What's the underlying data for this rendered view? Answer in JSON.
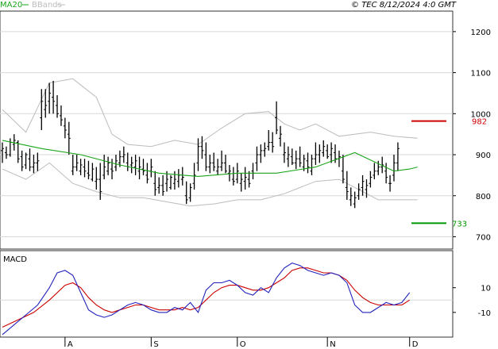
{
  "header": {
    "copyright": "© TEC 8/12/2024 4:0 GMT"
  },
  "legend": [
    {
      "label": "MA20",
      "color": "#1aa51a"
    },
    {
      "label": "BBands",
      "color": "#bcbcbc"
    }
  ],
  "price_axis": {
    "ticks": [
      700,
      800,
      900,
      1000,
      1100,
      1200
    ]
  },
  "macd_axis": {
    "ticks": [
      "10",
      "-10"
    ]
  },
  "x_axis": {
    "labels": [
      "A",
      "S",
      "O",
      "N",
      "D"
    ]
  },
  "levels": {
    "resistance": {
      "label": "982",
      "value": 982,
      "color": "#cc0000"
    },
    "support": {
      "label": "733",
      "value": 733,
      "color": "#009900"
    }
  },
  "macd_panel": {
    "title": "MACD"
  },
  "colors": {
    "ma": "#1aa51a",
    "bands": "#bcbcbc",
    "macd": "#2222bb",
    "signal": "#cc0000",
    "grid": "#d8d8d8",
    "bar": "#000000"
  },
  "chart_data": {
    "type": "ohlc",
    "price_ylim": [
      670,
      1250
    ],
    "macd_ylim": [
      -30,
      40
    ],
    "month_starts": {
      "A": 16,
      "S": 38,
      "O": 60,
      "N": 83,
      "D": 104
    },
    "bars": [
      [
        910,
        930,
        880,
        915
      ],
      [
        905,
        920,
        890,
        900
      ],
      [
        900,
        940,
        895,
        930
      ],
      [
        925,
        950,
        910,
        935
      ],
      [
        930,
        935,
        880,
        890
      ],
      [
        895,
        910,
        860,
        870
      ],
      [
        875,
        905,
        865,
        900
      ],
      [
        890,
        915,
        860,
        870
      ],
      [
        870,
        900,
        855,
        880
      ],
      [
        880,
        905,
        860,
        885
      ],
      [
        990,
        1060,
        960,
        1030
      ],
      [
        1010,
        1060,
        990,
        1020
      ],
      [
        1030,
        1075,
        1000,
        1050
      ],
      [
        1040,
        1080,
        1000,
        1030
      ],
      [
        1020,
        1045,
        990,
        1000
      ],
      [
        995,
        1020,
        970,
        985
      ],
      [
        970,
        990,
        940,
        960
      ],
      [
        950,
        980,
        900,
        940
      ],
      [
        860,
        900,
        850,
        870
      ],
      [
        870,
        900,
        860,
        880
      ],
      [
        860,
        890,
        850,
        875
      ],
      [
        870,
        890,
        845,
        860
      ],
      [
        855,
        885,
        840,
        850
      ],
      [
        840,
        880,
        835,
        865
      ],
      [
        835,
        870,
        815,
        840
      ],
      [
        840,
        880,
        790,
        810
      ],
      [
        850,
        900,
        840,
        870
      ],
      [
        860,
        895,
        850,
        880
      ],
      [
        865,
        890,
        840,
        860
      ],
      [
        870,
        900,
        860,
        885
      ],
      [
        880,
        910,
        870,
        895
      ],
      [
        895,
        920,
        880,
        900
      ],
      [
        880,
        905,
        860,
        870
      ],
      [
        875,
        895,
        855,
        880
      ],
      [
        870,
        900,
        850,
        885
      ],
      [
        860,
        895,
        840,
        870
      ],
      [
        865,
        890,
        850,
        860
      ],
      [
        850,
        880,
        830,
        840
      ],
      [
        860,
        890,
        845,
        870
      ],
      [
        830,
        860,
        800,
        815
      ],
      [
        820,
        845,
        805,
        825
      ],
      [
        825,
        850,
        800,
        810
      ],
      [
        830,
        860,
        810,
        840
      ],
      [
        820,
        850,
        815,
        845
      ],
      [
        830,
        860,
        815,
        840
      ],
      [
        835,
        865,
        820,
        850
      ],
      [
        840,
        870,
        825,
        845
      ],
      [
        800,
        835,
        780,
        790
      ],
      [
        795,
        830,
        785,
        820
      ],
      [
        830,
        880,
        815,
        850
      ],
      [
        880,
        940,
        860,
        920
      ],
      [
        920,
        945,
        890,
        910
      ],
      [
        900,
        930,
        860,
        870
      ],
      [
        870,
        900,
        855,
        880
      ],
      [
        880,
        905,
        860,
        870
      ],
      [
        860,
        890,
        850,
        870
      ],
      [
        870,
        910,
        860,
        880
      ],
      [
        880,
        900,
        855,
        860
      ],
      [
        855,
        875,
        835,
        860
      ],
      [
        840,
        870,
        825,
        835
      ],
      [
        840,
        880,
        830,
        860
      ],
      [
        830,
        855,
        810,
        840
      ],
      [
        835,
        870,
        815,
        845
      ],
      [
        840,
        860,
        820,
        830
      ],
      [
        860,
        880,
        840,
        855
      ],
      [
        880,
        920,
        860,
        900
      ],
      [
        900,
        925,
        880,
        910
      ],
      [
        910,
        930,
        895,
        915
      ],
      [
        920,
        960,
        910,
        930
      ],
      [
        930,
        955,
        905,
        920
      ],
      [
        990,
        1030,
        950,
        960
      ],
      [
        940,
        970,
        920,
        950
      ],
      [
        900,
        930,
        880,
        905
      ],
      [
        890,
        920,
        870,
        900
      ],
      [
        895,
        915,
        875,
        880
      ],
      [
        880,
        910,
        865,
        890
      ],
      [
        890,
        920,
        870,
        880
      ],
      [
        870,
        900,
        860,
        890
      ],
      [
        885,
        905,
        855,
        870
      ],
      [
        860,
        900,
        850,
        890
      ],
      [
        890,
        930,
        875,
        900
      ],
      [
        900,
        925,
        880,
        910
      ],
      [
        905,
        935,
        895,
        920
      ],
      [
        910,
        925,
        890,
        895
      ],
      [
        900,
        930,
        880,
        915
      ],
      [
        905,
        925,
        880,
        890
      ],
      [
        890,
        910,
        870,
        895
      ],
      [
        860,
        900,
        830,
        840
      ],
      [
        820,
        860,
        790,
        810
      ],
      [
        790,
        820,
        775,
        800
      ],
      [
        780,
        810,
        770,
        795
      ],
      [
        800,
        830,
        790,
        815
      ],
      [
        820,
        850,
        800,
        835
      ],
      [
        815,
        840,
        795,
        825
      ],
      [
        830,
        860,
        820,
        845
      ],
      [
        850,
        880,
        840,
        860
      ],
      [
        860,
        885,
        850,
        870
      ],
      [
        870,
        895,
        855,
        875
      ],
      [
        860,
        880,
        830,
        845
      ],
      [
        830,
        850,
        810,
        830
      ],
      [
        850,
        900,
        835,
        880
      ],
      [
        880,
        930,
        860,
        915
      ]
    ],
    "ma20": [
      [
        0,
        935
      ],
      [
        10,
        915
      ],
      [
        20,
        900
      ],
      [
        30,
        875
      ],
      [
        40,
        855
      ],
      [
        50,
        847
      ],
      [
        60,
        855
      ],
      [
        70,
        855
      ],
      [
        80,
        870
      ],
      [
        90,
        905
      ],
      [
        100,
        860
      ],
      [
        104,
        865
      ],
      [
        106,
        870
      ]
    ],
    "bb_upper": [
      [
        0,
        1010
      ],
      [
        6,
        955
      ],
      [
        12,
        1075
      ],
      [
        18,
        1085
      ],
      [
        24,
        1040
      ],
      [
        28,
        950
      ],
      [
        32,
        925
      ],
      [
        38,
        920
      ],
      [
        44,
        935
      ],
      [
        50,
        925
      ],
      [
        56,
        965
      ],
      [
        62,
        1000
      ],
      [
        68,
        1005
      ],
      [
        72,
        975
      ],
      [
        76,
        960
      ],
      [
        80,
        975
      ],
      [
        86,
        945
      ],
      [
        94,
        955
      ],
      [
        100,
        945
      ],
      [
        106,
        940
      ]
    ],
    "bb_lower": [
      [
        0,
        865
      ],
      [
        6,
        840
      ],
      [
        12,
        880
      ],
      [
        18,
        830
      ],
      [
        24,
        810
      ],
      [
        30,
        795
      ],
      [
        36,
        795
      ],
      [
        42,
        785
      ],
      [
        48,
        775
      ],
      [
        54,
        780
      ],
      [
        60,
        790
      ],
      [
        66,
        790
      ],
      [
        72,
        805
      ],
      [
        76,
        820
      ],
      [
        80,
        835
      ],
      [
        86,
        840
      ],
      [
        92,
        810
      ],
      [
        96,
        790
      ],
      [
        100,
        790
      ],
      [
        106,
        790
      ]
    ],
    "macd": [
      [
        0,
        -28
      ],
      [
        3,
        -20
      ],
      [
        6,
        -12
      ],
      [
        9,
        -4
      ],
      [
        12,
        10
      ],
      [
        14,
        22
      ],
      [
        16,
        24
      ],
      [
        18,
        20
      ],
      [
        20,
        6
      ],
      [
        22,
        -8
      ],
      [
        24,
        -12
      ],
      [
        26,
        -14
      ],
      [
        28,
        -12
      ],
      [
        30,
        -8
      ],
      [
        32,
        -4
      ],
      [
        34,
        -2
      ],
      [
        36,
        -4
      ],
      [
        38,
        -8
      ],
      [
        40,
        -10
      ],
      [
        42,
        -10
      ],
      [
        44,
        -6
      ],
      [
        46,
        -8
      ],
      [
        48,
        -2
      ],
      [
        50,
        -10
      ],
      [
        52,
        8
      ],
      [
        54,
        14
      ],
      [
        56,
        14
      ],
      [
        58,
        16
      ],
      [
        60,
        12
      ],
      [
        62,
        6
      ],
      [
        64,
        4
      ],
      [
        66,
        10
      ],
      [
        68,
        6
      ],
      [
        70,
        18
      ],
      [
        72,
        26
      ],
      [
        74,
        30
      ],
      [
        76,
        28
      ],
      [
        78,
        24
      ],
      [
        80,
        22
      ],
      [
        82,
        20
      ],
      [
        84,
        22
      ],
      [
        86,
        20
      ],
      [
        88,
        14
      ],
      [
        90,
        -4
      ],
      [
        92,
        -10
      ],
      [
        94,
        -10
      ],
      [
        96,
        -6
      ],
      [
        98,
        -2
      ],
      [
        100,
        -4
      ],
      [
        102,
        -2
      ],
      [
        104,
        6
      ]
    ],
    "signal": [
      [
        0,
        -22
      ],
      [
        4,
        -16
      ],
      [
        8,
        -10
      ],
      [
        12,
        0
      ],
      [
        16,
        12
      ],
      [
        18,
        14
      ],
      [
        20,
        10
      ],
      [
        22,
        2
      ],
      [
        24,
        -4
      ],
      [
        26,
        -8
      ],
      [
        28,
        -10
      ],
      [
        30,
        -8
      ],
      [
        32,
        -6
      ],
      [
        34,
        -4
      ],
      [
        36,
        -4
      ],
      [
        38,
        -6
      ],
      [
        40,
        -8
      ],
      [
        42,
        -8
      ],
      [
        44,
        -8
      ],
      [
        46,
        -6
      ],
      [
        48,
        -8
      ],
      [
        50,
        -6
      ],
      [
        52,
        0
      ],
      [
        54,
        6
      ],
      [
        56,
        10
      ],
      [
        58,
        12
      ],
      [
        60,
        12
      ],
      [
        62,
        10
      ],
      [
        64,
        8
      ],
      [
        66,
        8
      ],
      [
        68,
        10
      ],
      [
        70,
        14
      ],
      [
        72,
        18
      ],
      [
        74,
        24
      ],
      [
        76,
        26
      ],
      [
        78,
        26
      ],
      [
        80,
        24
      ],
      [
        82,
        22
      ],
      [
        84,
        22
      ],
      [
        86,
        20
      ],
      [
        88,
        16
      ],
      [
        90,
        8
      ],
      [
        92,
        2
      ],
      [
        94,
        -2
      ],
      [
        96,
        -4
      ],
      [
        98,
        -4
      ],
      [
        100,
        -4
      ],
      [
        102,
        -4
      ],
      [
        104,
        0
      ]
    ]
  }
}
